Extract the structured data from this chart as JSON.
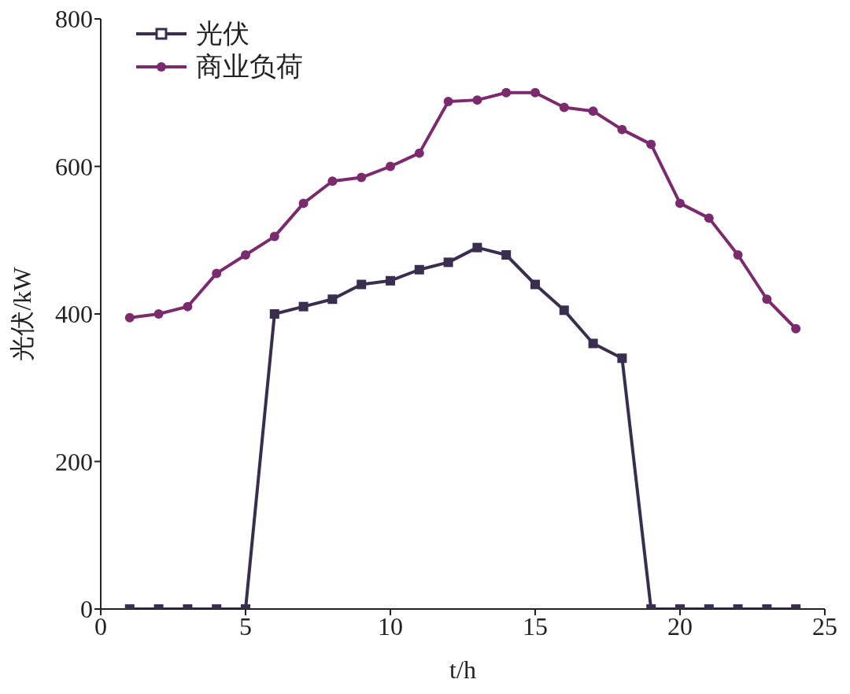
{
  "chart_data": {
    "type": "line",
    "xlabel": "t/h",
    "ylabel": "光伏/kW",
    "x": [
      1,
      2,
      3,
      4,
      5,
      6,
      7,
      8,
      9,
      10,
      11,
      12,
      13,
      14,
      15,
      16,
      17,
      18,
      19,
      20,
      21,
      22,
      23,
      24
    ],
    "series": [
      {
        "name": "光伏",
        "color": "#3a2e50",
        "marker": "square",
        "values": [
          0,
          0,
          0,
          0,
          0,
          400,
          410,
          420,
          440,
          445,
          460,
          470,
          490,
          480,
          440,
          405,
          360,
          340,
          0,
          0,
          0,
          0,
          0,
          0
        ]
      },
      {
        "name": "商业负荷",
        "color": "#7b2a6e",
        "marker": "circle",
        "values": [
          395,
          400,
          410,
          455,
          480,
          505,
          550,
          580,
          585,
          600,
          618,
          688,
          690,
          700,
          700,
          680,
          675,
          650,
          630,
          550,
          530,
          480,
          420,
          380
        ]
      }
    ],
    "xlim": [
      0,
      25
    ],
    "xticks": [
      0,
      5,
      10,
      15,
      20,
      25
    ],
    "ylim": [
      0,
      800
    ],
    "yticks": [
      0,
      200,
      400,
      600,
      800
    ],
    "grid": false,
    "legend": "top left"
  }
}
